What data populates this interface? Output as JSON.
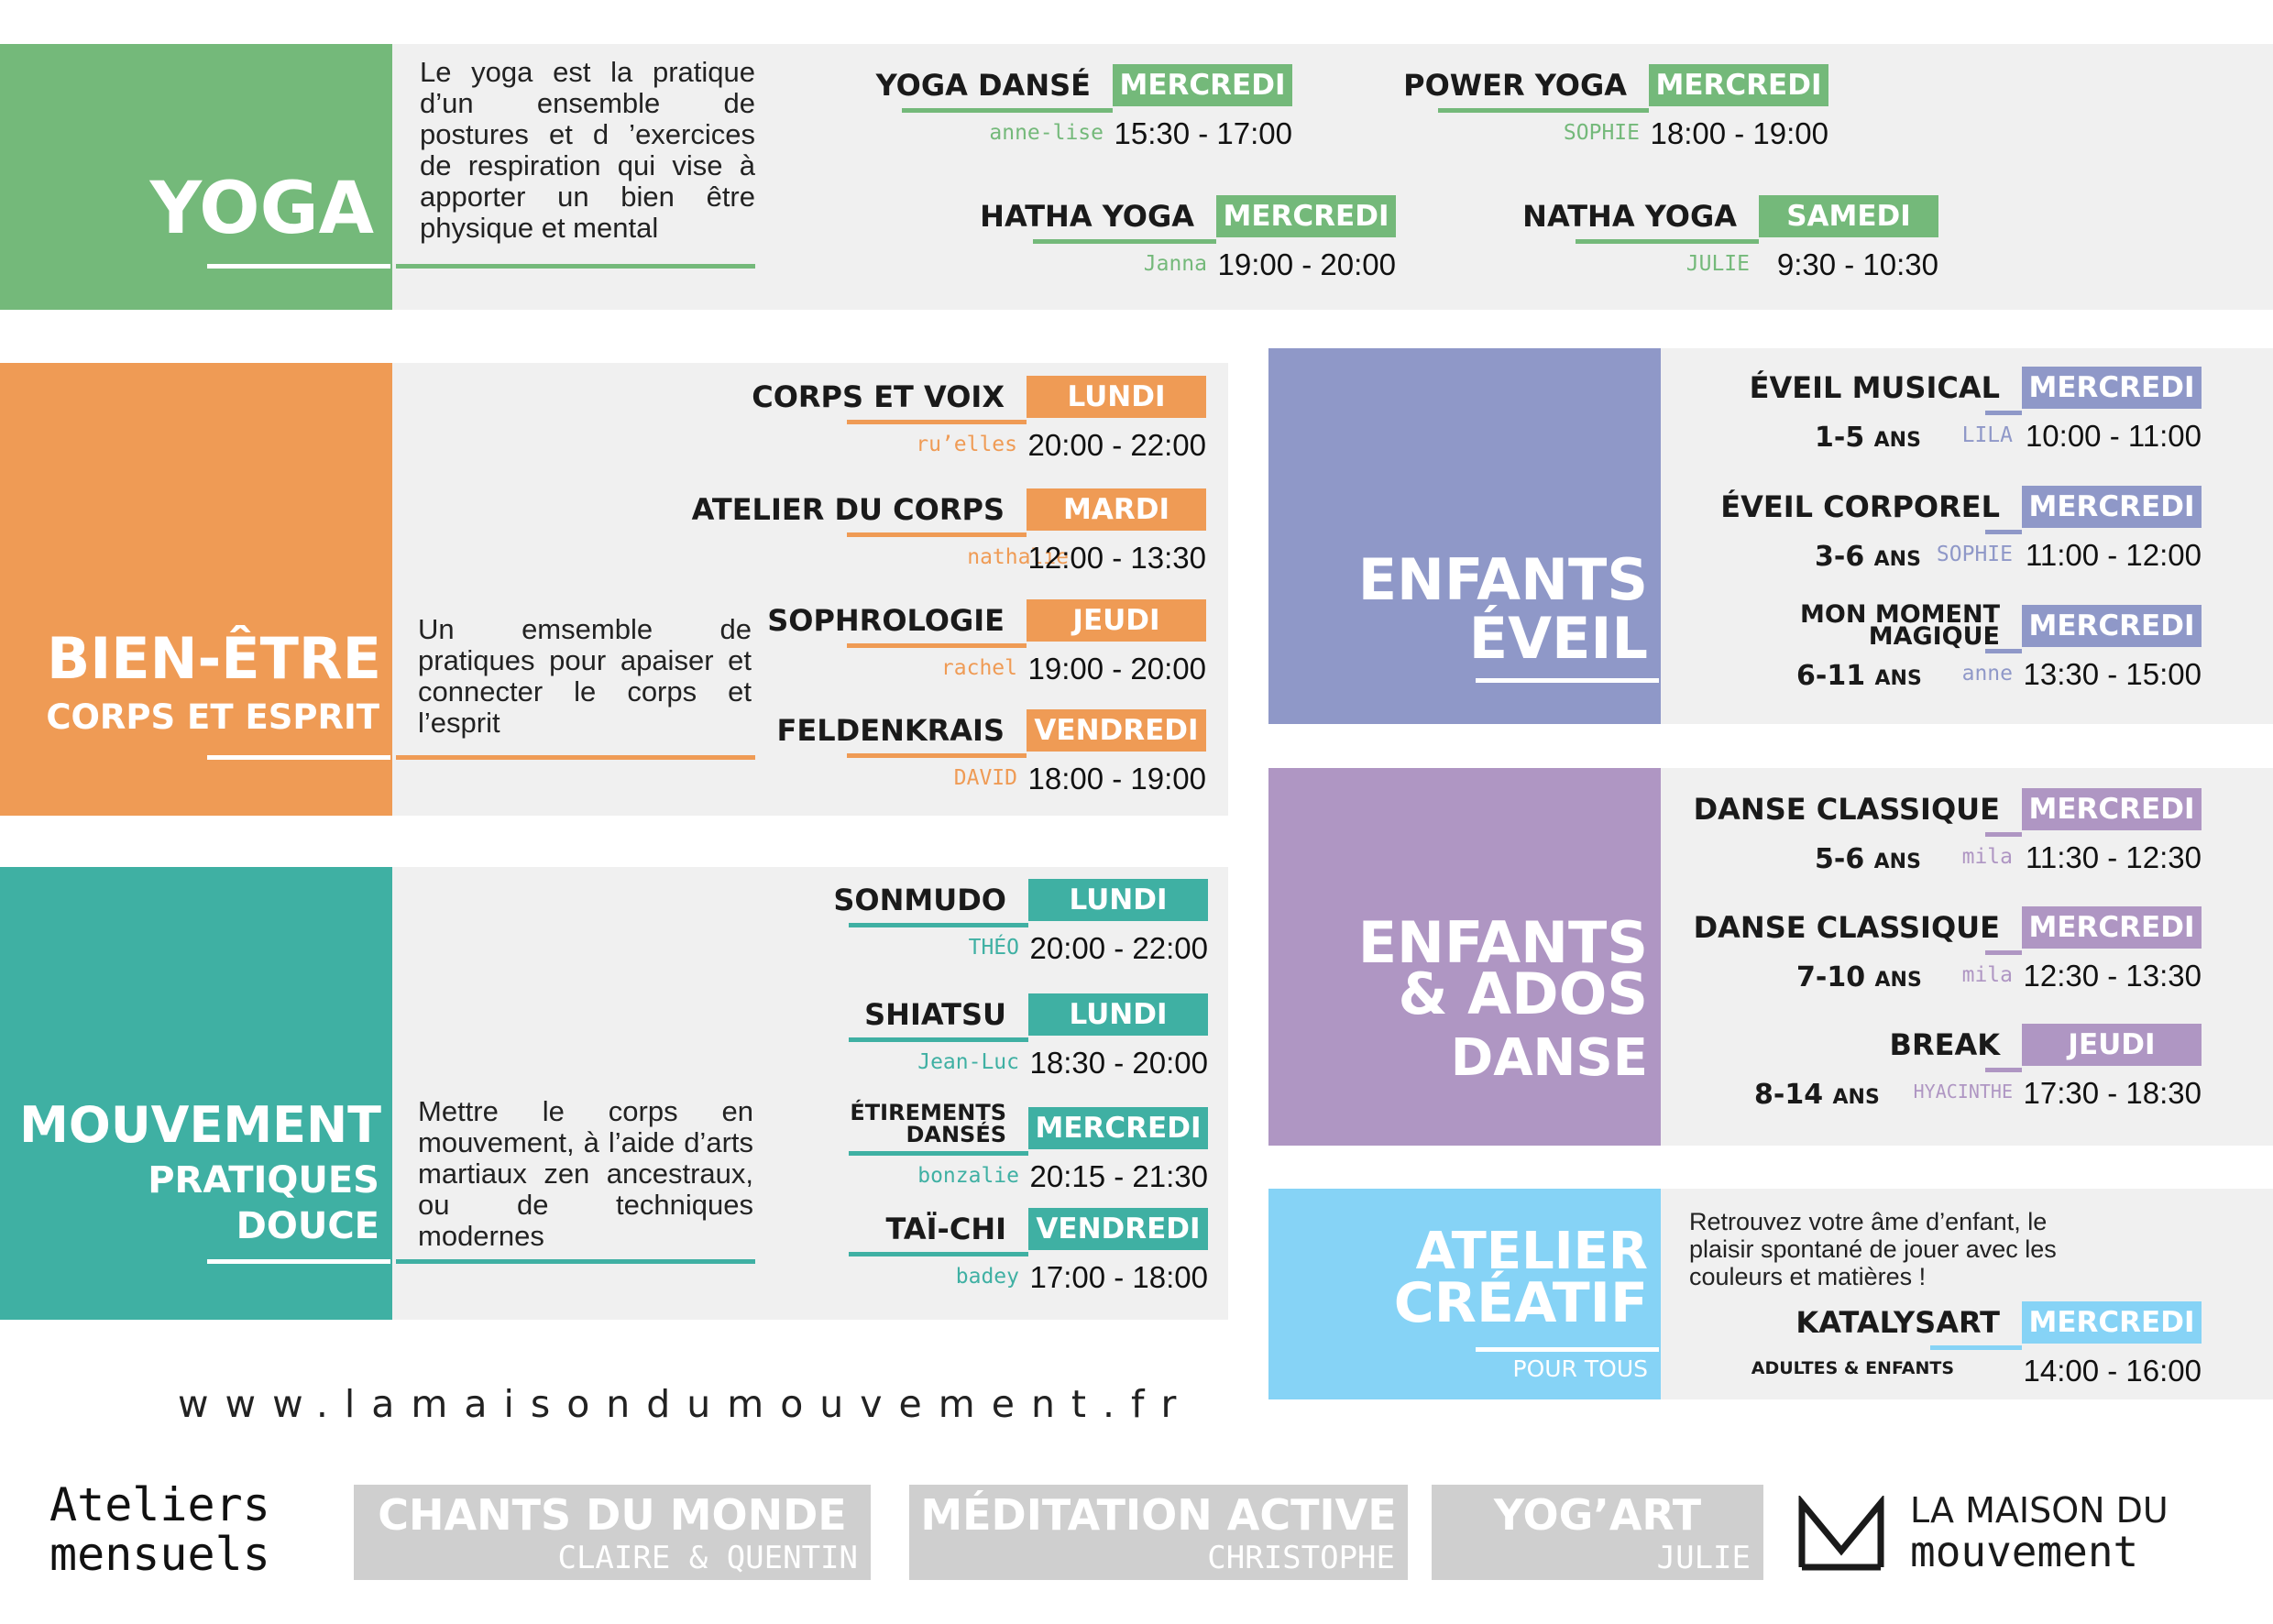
{
  "colors": {
    "yoga": "#74b97a",
    "bien": "#ef9b55",
    "mouv": "#3fb0a3",
    "eveil": "#8f98c8",
    "danse": "#af96c3",
    "creatif": "#86d3f6",
    "gris": "#cfcfcf"
  },
  "yoga": {
    "title": "YOGA",
    "desc": "Le yoga est la pratique d’un ensemble de postures et d ’exercices de respiration qui vise à apporter un bien être physique et mental",
    "classes": [
      {
        "name": "YOGA DANSÉ",
        "day": "MERCREDI",
        "teacher": "anne-lise",
        "time": "15:30 - 17:00"
      },
      {
        "name": "POWER YOGA",
        "day": "MERCREDI",
        "teacher": "SOPHIE",
        "time": "18:00 - 19:00"
      },
      {
        "name": "HATHA YOGA",
        "day": "MERCREDI",
        "teacher": "Janna",
        "time": "19:00 - 20:00"
      },
      {
        "name": "NATHA YOGA",
        "day": "SAMEDI",
        "teacher": "JULIE",
        "time": "9:30 - 10:30"
      }
    ]
  },
  "bien": {
    "title": "BIEN-ÊTRE",
    "subtitle": "CORPS ET ESPRIT",
    "desc": "Un emsemble de pratiques pour apaiser et connecter le corps et l’esprit",
    "classes": [
      {
        "name": "CORPS ET VOIX",
        "day": "LUNDI",
        "teacher": "ru’elles",
        "time": "20:00 - 22:00"
      },
      {
        "name": "ATELIER DU CORPS",
        "day": "MARDI",
        "teacher": "nathalie",
        "time": "12:00 - 13:30"
      },
      {
        "name": "SOPHROLOGIE",
        "day": "JEUDI",
        "teacher": "rachel",
        "time": "19:00 - 20:00"
      },
      {
        "name": "FELDENKRAIS",
        "day": "VENDREDI",
        "teacher": "DAVID",
        "time": "18:00 - 19:00"
      }
    ]
  },
  "mouv": {
    "title": "MOUVEMENT",
    "subtitle1": "PRATIQUES",
    "subtitle2": "DOUCE",
    "desc": "Mettre le corps en mouvement, à l’aide d’arts martiaux zen ancestraux, ou de techniques modernes",
    "classes": [
      {
        "name": "SONMUDO",
        "day": "LUNDI",
        "teacher": "THÉO",
        "time": "20:00 - 22:00"
      },
      {
        "name": "SHIATSU",
        "day": "LUNDI",
        "teacher": "Jean-Luc",
        "time": "18:30 - 20:00"
      },
      {
        "name1": "ÉTIREMENTS",
        "name2": "DANSÉS",
        "day": "MERCREDI",
        "teacher": "bonzalie",
        "time": "20:15 - 21:30"
      },
      {
        "name": "TAÏ-CHI",
        "day": "VENDREDI",
        "teacher": "badey",
        "time": "17:00 - 18:00"
      }
    ]
  },
  "eveil": {
    "title1": "ENFANTS",
    "title2": "ÉVEIL",
    "classes": [
      {
        "name": "ÉVEIL MUSICAL",
        "day": "MERCREDI",
        "age": "1-5",
        "age_unit": "ANS",
        "teacher": "LILA",
        "time": "10:00 - 11:00"
      },
      {
        "name": "ÉVEIL CORPOREL",
        "day": "MERCREDI",
        "age": "3-6",
        "age_unit": "ANS",
        "teacher": "SOPHIE",
        "time": "11:00 - 12:00"
      },
      {
        "name1": "MON MOMENT",
        "name2": "MAGIQUE",
        "day": "MERCREDI",
        "age": "6-11",
        "age_unit": "ANS",
        "teacher": "anne",
        "time": "13:30 - 15:00"
      }
    ]
  },
  "danse": {
    "title1": "ENFANTS",
    "title2": "& ADOS",
    "subtitle": "DANSE",
    "classes": [
      {
        "name": "DANSE CLASSIQUE",
        "day": "MERCREDI",
        "age": "5-6",
        "age_unit": "ANS",
        "teacher": "mila",
        "time": "11:30 - 12:30"
      },
      {
        "name": "DANSE CLASSIQUE",
        "day": "MERCREDI",
        "age": "7-10",
        "age_unit": "ANS",
        "teacher": "mila",
        "time": "12:30 - 13:30"
      },
      {
        "name": "BREAK",
        "day": "JEUDI",
        "age": "8-14",
        "age_unit": "ANS",
        "teacher": "HYACINTHE",
        "time": "17:30 - 18:30"
      }
    ]
  },
  "creatif": {
    "title1": "ATELIER",
    "title2": "CRÉATIF",
    "subtitle": "POUR TOUS",
    "desc": "Retrouvez votre âme d’enfant, le plaisir spontané de jouer avec les couleurs et matières !",
    "class": {
      "name": "KATALYSART",
      "day": "MERCREDI",
      "teacher": "ADULTES & ENFANTS",
      "time": "14:00 - 16:00"
    }
  },
  "website": "www.lamaisondumouvement.fr",
  "mensuels": {
    "label1": "Ateliers",
    "label2": "mensuels",
    "items": [
      {
        "title": "CHANTS DU MONDE",
        "sub": "CLAIRE & QUENTIN"
      },
      {
        "title": "MÉDITATION ACTIVE",
        "sub": "CHRISTOPHE"
      },
      {
        "title": "YOG’ART",
        "sub": "JULIE"
      }
    ]
  },
  "logo": {
    "line1": "LA MAISON DU",
    "line2": "mouvement"
  }
}
